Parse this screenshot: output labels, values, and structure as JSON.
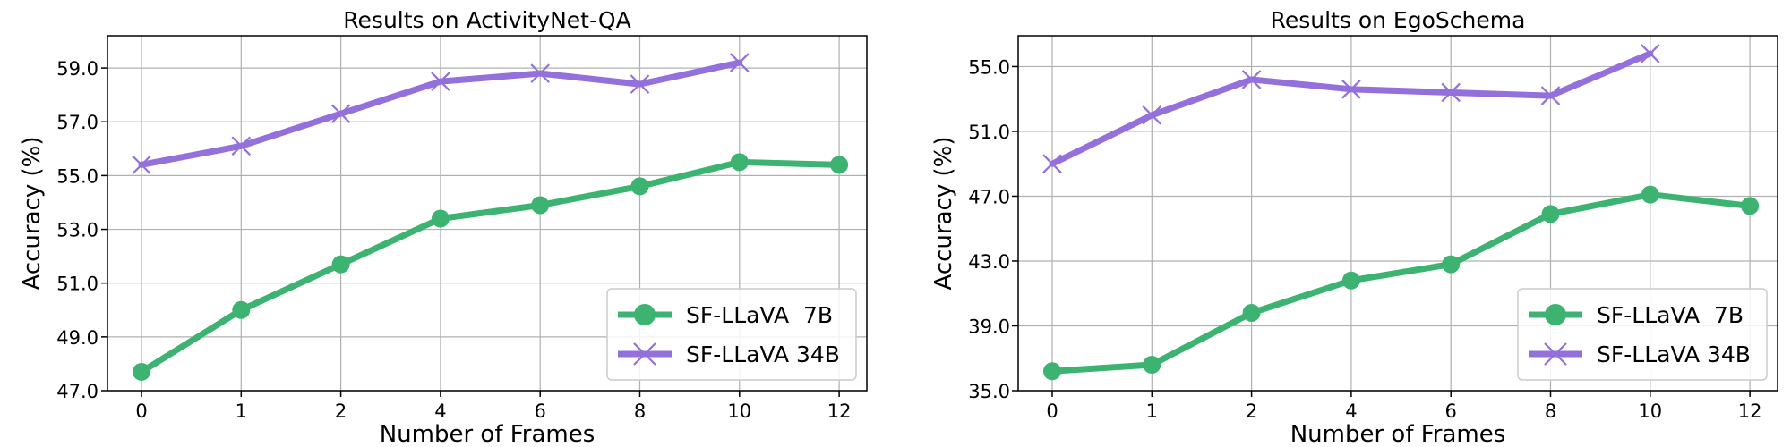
{
  "chart_data": [
    {
      "type": "line",
      "title": "Results on ActivityNet-QA",
      "xlabel": "Number of Frames",
      "ylabel": "Accuracy (%)",
      "categories": [
        "0",
        "1",
        "2",
        "4",
        "6",
        "8",
        "10",
        "12"
      ],
      "ylim": [
        47.0,
        60.2
      ],
      "yticks": [
        "47.0",
        "49.0",
        "51.0",
        "53.0",
        "55.0",
        "57.0",
        "59.0"
      ],
      "ytick_values": [
        47.0,
        49.0,
        51.0,
        53.0,
        55.0,
        57.0,
        59.0
      ],
      "grid": true,
      "legend_position": "bottom-right",
      "series": [
        {
          "name": "SF-LLaVA  7B",
          "marker": "circle",
          "color": "#3CB371",
          "values": [
            47.7,
            50.0,
            51.7,
            53.4,
            53.9,
            54.6,
            55.5,
            55.4
          ]
        },
        {
          "name": "SF-LLaVA 34B",
          "marker": "x",
          "color": "#9370DB",
          "values": [
            55.4,
            56.1,
            57.3,
            58.5,
            58.8,
            58.4,
            59.2,
            null
          ]
        }
      ]
    },
    {
      "type": "line",
      "title": "Results on EgoSchema",
      "xlabel": "Number of Frames",
      "ylabel": "Accuracy (%)",
      "categories": [
        "0",
        "1",
        "2",
        "4",
        "6",
        "8",
        "10",
        "12"
      ],
      "ylim": [
        35.0,
        56.9
      ],
      "yticks": [
        "35.0",
        "39.0",
        "43.0",
        "47.0",
        "51.0",
        "55.0"
      ],
      "ytick_values": [
        35.0,
        39.0,
        43.0,
        47.0,
        51.0,
        55.0
      ],
      "grid": true,
      "legend_position": "bottom-right",
      "series": [
        {
          "name": "SF-LLaVA  7B",
          "marker": "circle",
          "color": "#3CB371",
          "values": [
            36.2,
            36.6,
            39.8,
            41.8,
            42.8,
            45.9,
            47.1,
            46.4
          ]
        },
        {
          "name": "SF-LLaVA 34B",
          "marker": "x",
          "color": "#9370DB",
          "values": [
            49.0,
            52.0,
            54.2,
            53.6,
            53.4,
            53.2,
            55.8,
            null
          ]
        }
      ]
    }
  ]
}
